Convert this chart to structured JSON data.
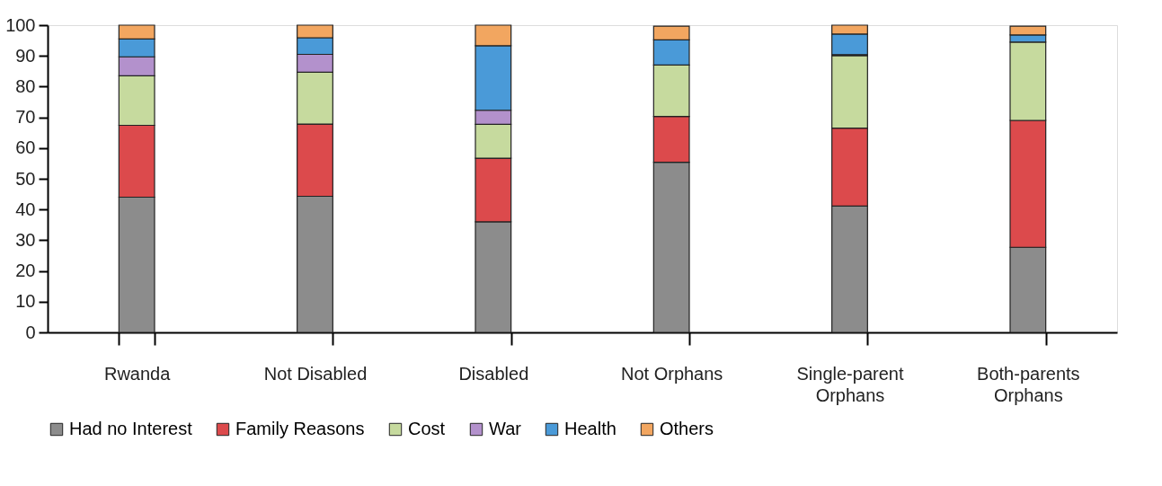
{
  "chart_data": {
    "type": "bar",
    "stacked": true,
    "categories": [
      "Rwanda",
      "Not Disabled",
      "Disabled",
      "Not Orphans",
      "Single-parent Orphans",
      "Both-parents Orphans"
    ],
    "series": [
      {
        "name": "Had no Interest",
        "color": "#8c8c8c",
        "values": [
          44.0,
          44.3,
          36.0,
          55.4,
          41.1,
          27.7
        ]
      },
      {
        "name": "Family Reasons",
        "color": "#dc4a4c",
        "values": [
          23.4,
          23.5,
          20.7,
          14.9,
          25.4,
          41.3
        ]
      },
      {
        "name": "Cost",
        "color": "#c6da9e",
        "values": [
          16.1,
          16.9,
          11.0,
          16.7,
          23.6,
          25.5
        ]
      },
      {
        "name": "War",
        "color": "#b391cc",
        "values": [
          6.2,
          5.8,
          4.6,
          null,
          0.3,
          null
        ]
      },
      {
        "name": "Health",
        "color": "#4a9ad8",
        "values": [
          5.8,
          5.4,
          21.0,
          8.2,
          6.7,
          2.3
        ]
      },
      {
        "name": "Others",
        "color": "#f2a660",
        "values": [
          4.5,
          4.1,
          6.7,
          4.5,
          2.9,
          2.9
        ]
      }
    ],
    "ylim": [
      0,
      100
    ],
    "yticks": [
      0,
      10,
      20,
      30,
      40,
      50,
      60,
      70,
      80,
      90,
      100
    ],
    "grid": false,
    "legend": "bottom"
  }
}
